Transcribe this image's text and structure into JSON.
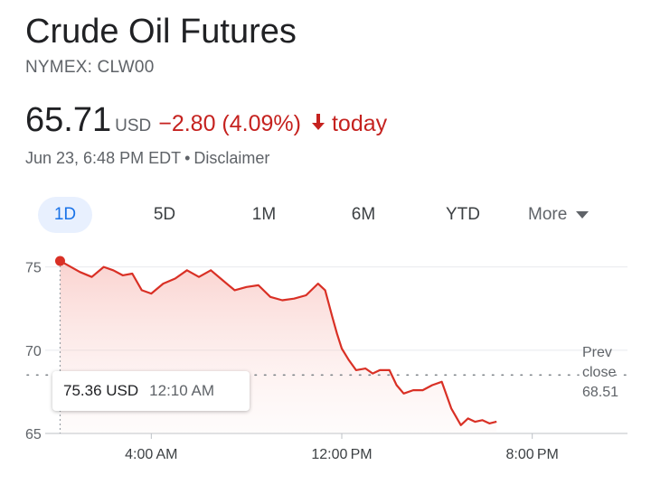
{
  "header": {
    "title": "Crude Oil Futures",
    "exchange": "NYMEX: CLW00",
    "price": "65.71",
    "currency": "USD",
    "change": "−2.80 (4.09%)",
    "change_period": "today",
    "timestamp": "Jun 23, 6:48 PM EDT",
    "disclaimer": "Disclaimer",
    "change_color": "#c5221f"
  },
  "tabs": [
    {
      "label": "1D",
      "active": true
    },
    {
      "label": "5D",
      "active": false
    },
    {
      "label": "1M",
      "active": false
    },
    {
      "label": "6M",
      "active": false
    },
    {
      "label": "YTD",
      "active": false
    },
    {
      "label": "More",
      "active": false
    }
  ],
  "tooltip": {
    "value": "75.36 USD",
    "time": "12:10 AM"
  },
  "prev_close": {
    "label_1": "Prev",
    "label_2": "close",
    "value": "68.51"
  },
  "chart_data": {
    "type": "area",
    "series": [
      {
        "x": [
          0.17,
          0.5,
          1.0,
          1.5,
          2.0,
          2.4,
          2.8,
          3.2,
          3.6,
          4.0,
          4.5,
          5.0,
          5.5,
          6.0,
          6.5,
          7.0,
          7.5,
          8.0,
          8.5,
          9.0,
          9.5,
          10.0,
          10.5,
          11.0,
          11.3,
          11.6,
          11.8,
          12.0,
          12.3,
          12.6,
          13.0,
          13.3,
          13.6,
          14.0,
          14.3,
          14.6,
          15.0,
          15.4,
          15.8,
          16.2,
          16.6,
          17.0,
          17.3,
          17.6,
          17.9,
          18.2,
          18.5
        ],
        "y": [
          75.36,
          75.1,
          74.7,
          74.4,
          75.0,
          74.8,
          74.5,
          74.6,
          73.6,
          73.4,
          74.0,
          74.3,
          74.8,
          74.4,
          74.8,
          74.2,
          73.6,
          73.8,
          73.9,
          73.2,
          73.0,
          73.1,
          73.3,
          74.0,
          73.6,
          72.0,
          71.0,
          70.1,
          69.4,
          68.8,
          68.9,
          68.6,
          68.8,
          68.8,
          67.9,
          67.4,
          67.6,
          67.6,
          67.9,
          68.1,
          66.5,
          65.5,
          65.9,
          65.7,
          65.8,
          65.6,
          65.71
        ],
        "color": "#d93025"
      }
    ],
    "x_ticks": [
      {
        "value": 4,
        "label": "4:00 AM"
      },
      {
        "value": 12,
        "label": "12:00 PM"
      },
      {
        "value": 20,
        "label": "8:00 PM"
      }
    ],
    "y_ticks": [
      65,
      70,
      75
    ],
    "xlim": [
      0,
      24
    ],
    "ylim": [
      65,
      75.36
    ],
    "prev_close": 68.51,
    "grid": true,
    "highlight_point": {
      "x": 0.17,
      "y": 75.36
    }
  }
}
